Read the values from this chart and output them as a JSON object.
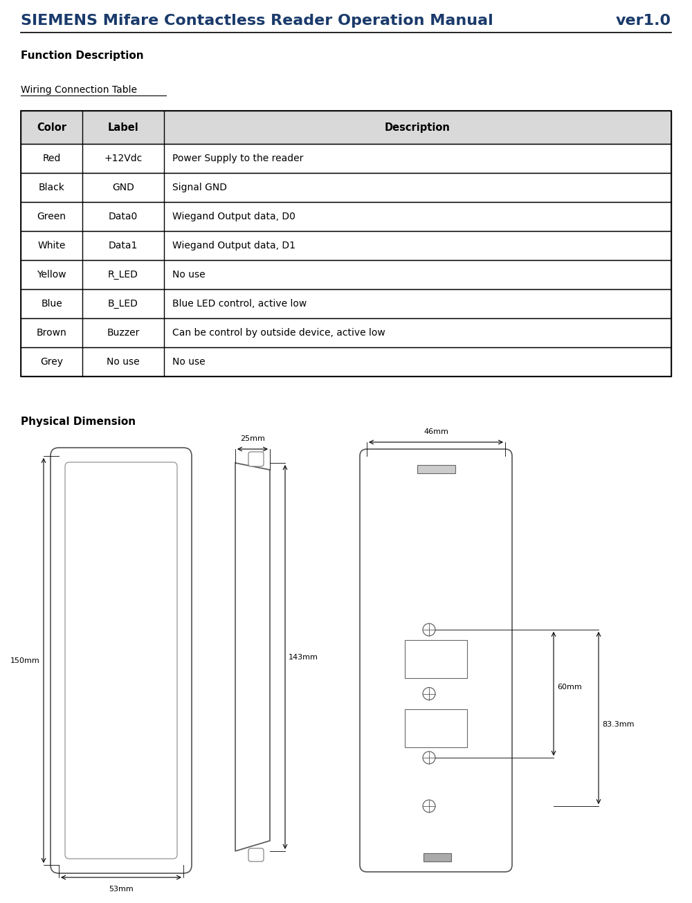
{
  "title_left": "SIEMENS Mifare Contactless Reader Operation Manual",
  "title_right": "ver1.0",
  "title_color": "#1a3a6b",
  "title_fontsize": 16,
  "function_desc_label": "Function Description",
  "wiring_table_label": "Wiring Connection Table",
  "table_headers": [
    "Color",
    "Label",
    "Description"
  ],
  "table_rows": [
    [
      "Red",
      "+12Vdc",
      "Power Supply to the reader"
    ],
    [
      "Black",
      "GND",
      "Signal GND"
    ],
    [
      "Green",
      "Data0",
      "Wiegand Output data, D0"
    ],
    [
      "White",
      "Data1",
      "Wiegand Output data, D1"
    ],
    [
      "Yellow",
      "R_LED",
      "No use"
    ],
    [
      "Blue",
      "B_LED",
      "Blue LED control, active low"
    ],
    [
      "Brown",
      "Buzzer",
      "Can be control by outside device, active low"
    ],
    [
      "Grey",
      "No use",
      "No use"
    ]
  ],
  "physical_dim_label": "Physical Dimension",
  "bg_color": "#ffffff",
  "dim_53mm": "53mm",
  "dim_150mm": "150mm",
  "dim_25mm": "25mm",
  "dim_143mm": "143mm",
  "dim_46mm": "46mm",
  "dim_60mm": "60mm",
  "dim_83mm": "83.3mm"
}
